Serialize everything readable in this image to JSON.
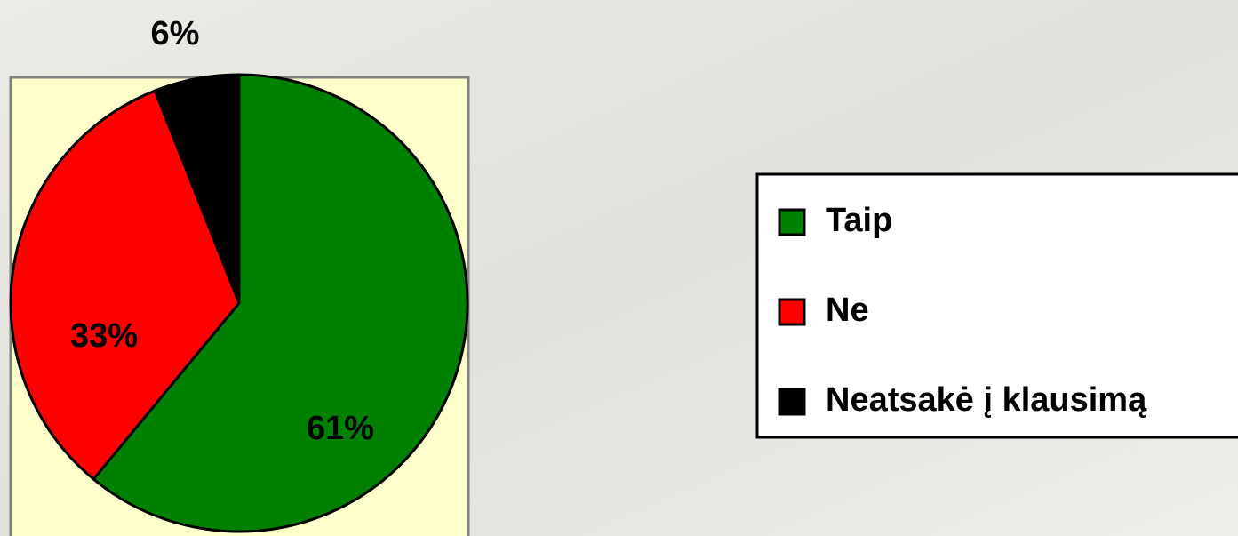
{
  "chart_data": {
    "type": "pie",
    "categories": [
      "Taip",
      "Ne",
      "Neatsakė į klausimą"
    ],
    "values": [
      61,
      33,
      6
    ],
    "value_labels": [
      "61%",
      "33%",
      "6%"
    ],
    "colors": [
      "#008000",
      "#ff0000",
      "#000000"
    ]
  }
}
